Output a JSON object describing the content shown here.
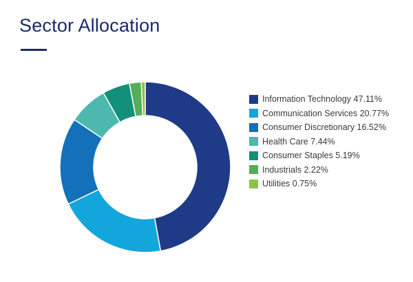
{
  "title": "Sector Allocation",
  "chart_data": {
    "type": "pie",
    "donut": true,
    "legend_position": "right",
    "unit": "%",
    "categories": [
      "Information Technology",
      "Communication Services",
      "Consumer Discretionary",
      "Health Care",
      "Consumer Staples",
      "Industrials",
      "Utilities"
    ],
    "values": [
      47.11,
      20.77,
      16.52,
      7.44,
      5.19,
      2.22,
      0.75
    ],
    "colors": [
      "#1f3a87",
      "#12a6dd",
      "#1470b8",
      "#4cb8ae",
      "#12907a",
      "#56ad5a",
      "#8cc34c"
    ]
  }
}
